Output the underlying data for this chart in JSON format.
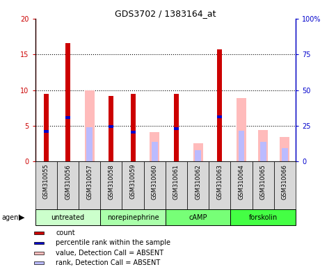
{
  "title": "GDS3702 / 1383164_at",
  "samples": [
    "GSM310055",
    "GSM310056",
    "GSM310057",
    "GSM310058",
    "GSM310059",
    "GSM310060",
    "GSM310061",
    "GSM310062",
    "GSM310063",
    "GSM310064",
    "GSM310065",
    "GSM310066"
  ],
  "count_values": [
    9.5,
    16.6,
    null,
    9.2,
    9.5,
    null,
    9.5,
    null,
    15.7,
    null,
    null,
    null
  ],
  "percentile_rank": [
    4.2,
    6.2,
    null,
    4.9,
    4.1,
    null,
    4.6,
    null,
    6.3,
    null,
    null,
    null
  ],
  "absent_value": [
    null,
    null,
    10.0,
    null,
    null,
    4.1,
    null,
    2.6,
    null,
    8.9,
    4.4,
    3.4
  ],
  "absent_rank": [
    null,
    null,
    4.8,
    null,
    null,
    2.8,
    null,
    1.6,
    null,
    4.3,
    2.8,
    1.9
  ],
  "ylim": [
    0,
    20
  ],
  "yticks": [
    0,
    5,
    10,
    15,
    20
  ],
  "yticklabels_left": [
    "0",
    "5",
    "10",
    "15",
    "20"
  ],
  "yticklabels_right": [
    "0",
    "25",
    "50",
    "75",
    "100%"
  ],
  "count_color": "#cc0000",
  "percentile_color": "#0000cc",
  "absent_value_color": "#ffbbbb",
  "absent_rank_color": "#bbbbff",
  "group_positions": [
    {
      "start": 0,
      "end": 2,
      "label": "untreated",
      "color": "#ccffcc"
    },
    {
      "start": 3,
      "end": 5,
      "label": "norepinephrine",
      "color": "#aaffaa"
    },
    {
      "start": 6,
      "end": 8,
      "label": "cAMP",
      "color": "#77ff77"
    },
    {
      "start": 9,
      "end": 11,
      "label": "forskolin",
      "color": "#44ff44"
    }
  ],
  "legend_items": [
    {
      "color": "#cc0000",
      "label": "count"
    },
    {
      "color": "#0000cc",
      "label": "percentile rank within the sample"
    },
    {
      "color": "#ffbbbb",
      "label": "value, Detection Call = ABSENT"
    },
    {
      "color": "#bbbbff",
      "label": "rank, Detection Call = ABSENT"
    }
  ]
}
